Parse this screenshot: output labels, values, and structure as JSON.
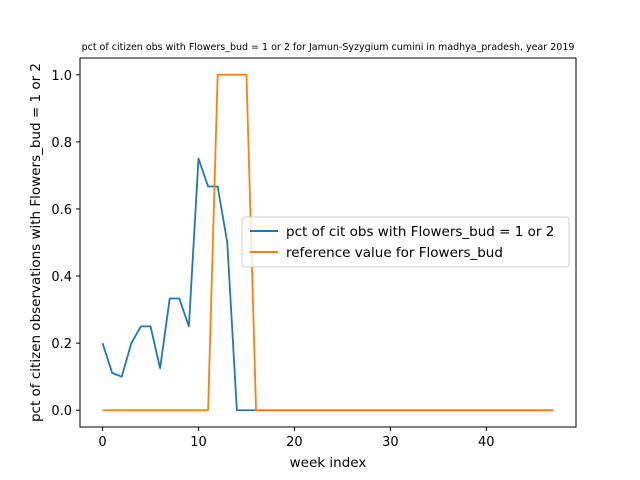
{
  "chart_data": {
    "type": "line",
    "title": "pct of citizen obs with Flowers_bud = 1 or 2 for Jamun-Syzygium cumini in madhya_pradesh, year 2019",
    "xlabel": "week index",
    "ylabel": "pct of citizen observations with Flowers_bud = 1 or 2",
    "xlim": [
      -2.35,
      49.35
    ],
    "ylim": [
      -0.05,
      1.05
    ],
    "xticks": [
      0,
      10,
      20,
      30,
      40
    ],
    "yticks": [
      0.0,
      0.2,
      0.4,
      0.6,
      0.8,
      1.0
    ],
    "xtick_labels": [
      "0",
      "10",
      "20",
      "30",
      "40"
    ],
    "ytick_labels": [
      "0.0",
      "0.2",
      "0.4",
      "0.6",
      "0.8",
      "1.0"
    ],
    "grid": false,
    "legend_position": "center-right",
    "series": [
      {
        "name": "pct of cit obs with Flowers_bud = 1 or 2",
        "color": "#1f77b4",
        "x": [
          0,
          1,
          2,
          3,
          4,
          5,
          6,
          7,
          8,
          9,
          10,
          11,
          12,
          13,
          14,
          15,
          16,
          17,
          18,
          19,
          20,
          21,
          22,
          23,
          24,
          25,
          26,
          27,
          28,
          29,
          30,
          31,
          32,
          33,
          34,
          35,
          36,
          37,
          38,
          39,
          40,
          41,
          42,
          43,
          44,
          45,
          46,
          47
        ],
        "y": [
          0.2,
          0.111,
          0.1,
          0.2,
          0.25,
          0.25,
          0.125,
          0.333,
          0.333,
          0.25,
          0.75,
          0.667,
          0.667,
          0.5,
          0,
          0,
          0,
          0,
          0,
          0,
          0,
          0,
          0,
          0,
          0,
          0,
          0,
          0,
          0,
          0,
          0,
          0,
          0,
          0,
          0,
          0,
          0,
          0,
          0,
          0,
          0,
          0,
          0,
          0,
          0,
          0,
          0,
          0
        ]
      },
      {
        "name": "reference value for Flowers_bud",
        "color": "#ff7f0e",
        "x": [
          0,
          1,
          2,
          3,
          4,
          5,
          6,
          7,
          8,
          9,
          10,
          11,
          12,
          13,
          14,
          15,
          16,
          17,
          18,
          19,
          20,
          21,
          22,
          23,
          24,
          25,
          26,
          27,
          28,
          29,
          30,
          31,
          32,
          33,
          34,
          35,
          36,
          37,
          38,
          39,
          40,
          41,
          42,
          43,
          44,
          45,
          46,
          47
        ],
        "y": [
          0,
          0,
          0,
          0,
          0,
          0,
          0,
          0,
          0,
          0,
          0,
          0,
          1,
          1,
          1,
          1,
          0,
          0,
          0,
          0,
          0,
          0,
          0,
          0,
          0,
          0,
          0,
          0,
          0,
          0,
          0,
          0,
          0,
          0,
          0,
          0,
          0,
          0,
          0,
          0,
          0,
          0,
          0,
          0,
          0,
          0,
          0,
          0
        ]
      }
    ]
  }
}
